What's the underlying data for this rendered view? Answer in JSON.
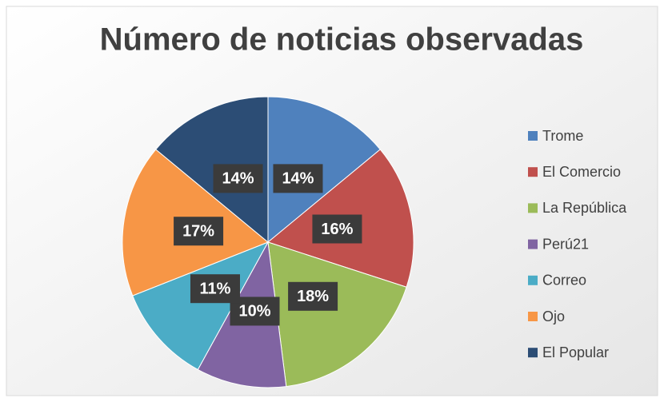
{
  "chart_data": {
    "type": "pie",
    "title": "Número de noticias observadas",
    "categories": [
      "Trome",
      "El Comercio",
      "La República",
      "Perú21",
      "Correo",
      "Ojo",
      "El Popular"
    ],
    "values": [
      14,
      16,
      18,
      10,
      11,
      17,
      14
    ],
    "value_labels": [
      "14%",
      "16%",
      "18%",
      "10%",
      "11%",
      "17%",
      "14%"
    ],
    "colors": [
      "#4f81bd",
      "#c0504d",
      "#9bbb59",
      "#8064a2",
      "#4bacc6",
      "#f79646",
      "#2c4d75"
    ],
    "legend": "right"
  }
}
